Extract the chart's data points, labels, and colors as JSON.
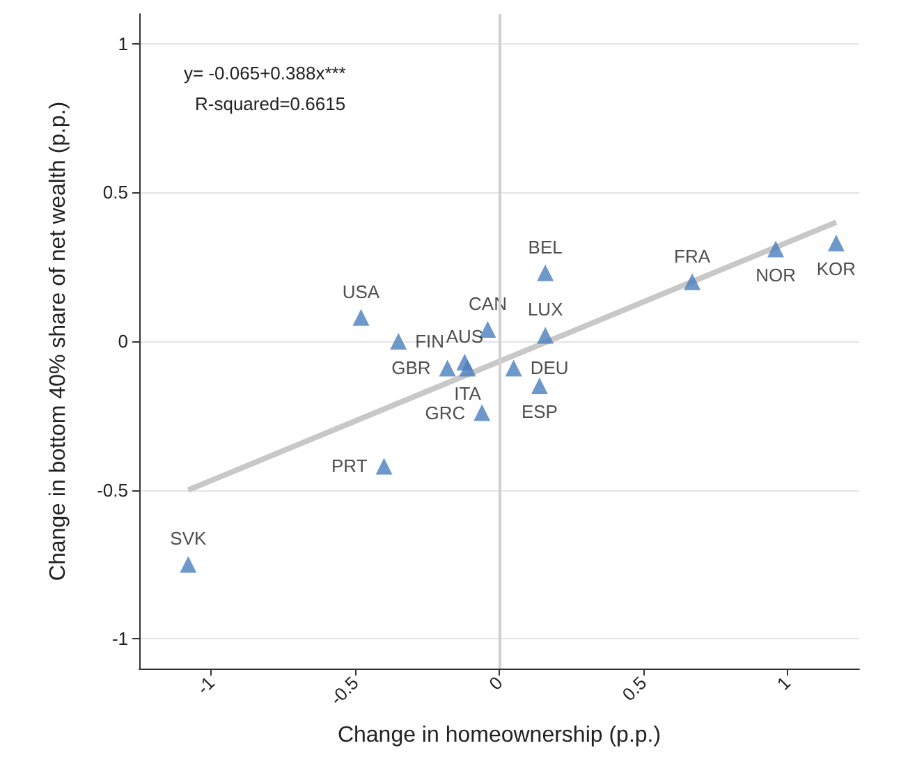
{
  "chart_data": {
    "type": "scatter",
    "xlabel": "Change in homeownership (p.p.)",
    "ylabel": "Change in bottom 40% share of net wealth (p.p.)",
    "annotations": [
      "y= -0.065+0.388x***",
      "R-squared=0.6615"
    ],
    "xlim": [
      -1.25,
      1.25
    ],
    "xticks": [
      -1,
      -0.5,
      0,
      0.5,
      1
    ],
    "ylim": [
      -1.1,
      1.1
    ],
    "yticks": [
      -1,
      -0.5,
      0,
      0.5,
      1
    ],
    "grid": "y",
    "marker": "triangle",
    "ref_lines": [
      {
        "axis": "x",
        "value": 0,
        "color": "#d0d0d0"
      }
    ],
    "series": [
      {
        "color": "#4a7ebb",
        "x": [
          -1.08,
          -0.4,
          -0.48,
          -0.35,
          -0.18,
          -0.12,
          -0.11,
          -0.04,
          -0.06,
          0.05,
          0.14,
          0.16,
          0.16,
          0.67,
          0.96,
          1.17
        ],
        "values": [
          -0.75,
          -0.42,
          0.08,
          0.0,
          -0.09,
          -0.07,
          -0.09,
          0.04,
          -0.24,
          -0.09,
          -0.15,
          0.02,
          0.23,
          0.2,
          0.31,
          0.33
        ],
        "value_labels": [
          "SVK",
          "PRT",
          "USA",
          "FIN",
          "GBR",
          "AUS",
          "ITA",
          "CAN",
          "GRC",
          "DEU",
          "ESP",
          "LUX",
          "BEL",
          "FRA",
          "NOR",
          "KOR"
        ]
      },
      {
        "type": "line",
        "color": "#c8c8c8",
        "marker": "none",
        "x": [
          -1.08,
          1.17
        ],
        "values": [
          -0.5,
          0.4
        ]
      }
    ]
  }
}
